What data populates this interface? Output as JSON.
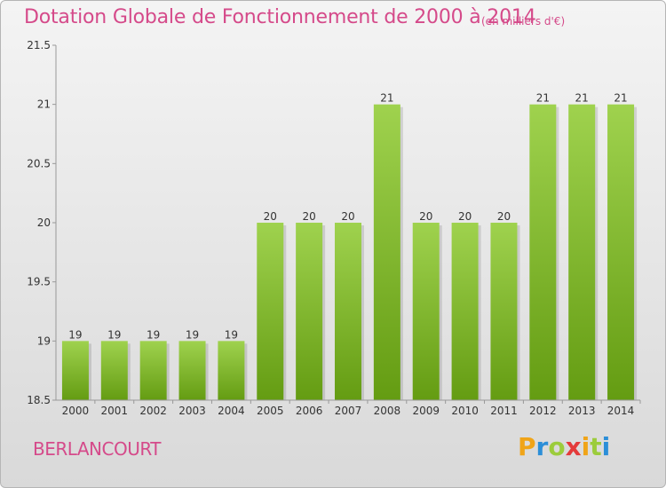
{
  "chart_data": {
    "type": "bar",
    "title": "Dotation Globale de Fonctionnement de 2000 à 2014",
    "subtitle": "(en milliers d'€)",
    "categories": [
      "2000",
      "2001",
      "2002",
      "2003",
      "2004",
      "2005",
      "2006",
      "2007",
      "2008",
      "2009",
      "2010",
      "2011",
      "2012",
      "2013",
      "2014"
    ],
    "values": [
      19,
      19,
      19,
      19,
      19,
      20,
      20,
      20,
      21,
      20,
      20,
      20,
      21,
      21,
      21
    ],
    "value_labels": [
      "19",
      "19",
      "19",
      "19",
      "19",
      "20",
      "20",
      "20",
      "21",
      "20",
      "20",
      "20",
      "21",
      "21",
      "21"
    ],
    "ylim": [
      18.5,
      21.5
    ],
    "yticks": [
      18.5,
      19,
      19.5,
      20,
      20.5,
      21,
      21.5
    ],
    "ytick_labels": [
      "18.5",
      "19",
      "19.5",
      "20",
      "20.5",
      "21",
      "21.5"
    ],
    "bar_color_top": "#9fd24e",
    "bar_color_bottom": "#649c12",
    "grid": false
  },
  "footer": {
    "place": "BERLANCOURT",
    "brand_letters": [
      "P",
      "r",
      "o",
      "x",
      "i",
      "t",
      "i"
    ],
    "brand_colors": [
      "#f0a418",
      "#2c8fd8",
      "#9ccc3c",
      "#e43a3a",
      "#f0a418",
      "#9ccc3c",
      "#2c8fd8"
    ]
  }
}
